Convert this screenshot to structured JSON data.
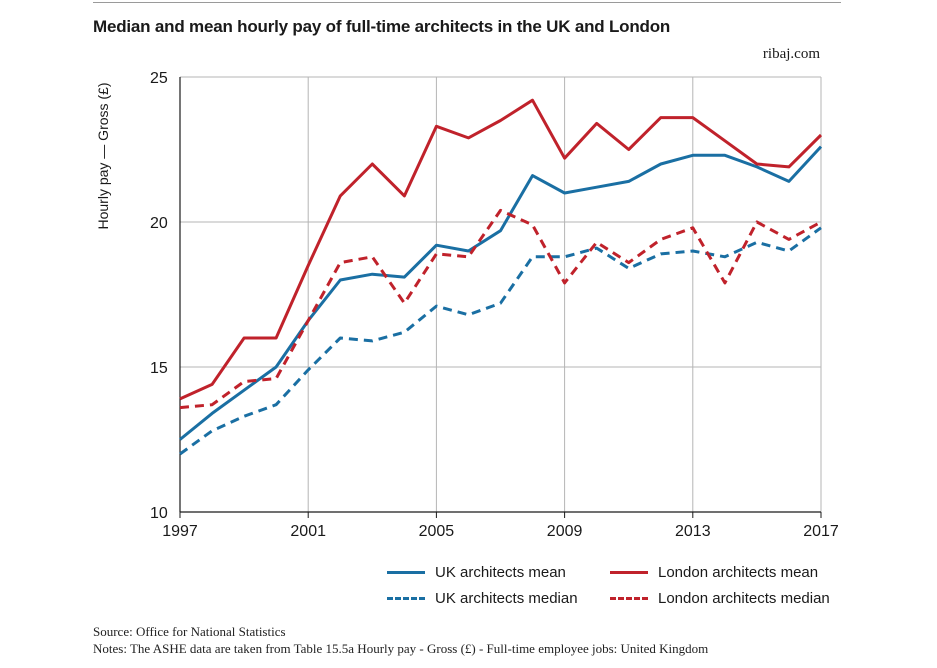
{
  "header": {
    "title": "Median and mean hourly pay of full-time architects in the UK and London",
    "brand": "ribaj.com"
  },
  "chart_data": {
    "type": "line",
    "title": "Median and mean hourly pay of full-time architects in the UK and London",
    "xlabel": "",
    "ylabel": "Hourly pay — Gross (£)",
    "x": [
      1997,
      1998,
      1999,
      2000,
      2001,
      2002,
      2003,
      2004,
      2005,
      2006,
      2007,
      2008,
      2009,
      2010,
      2011,
      2012,
      2013,
      2014,
      2015,
      2016,
      2017
    ],
    "xlim": [
      1997,
      2017
    ],
    "ylim": [
      10,
      25
    ],
    "xticks": [
      "1997",
      "2001",
      "2005",
      "2009",
      "2013",
      "2017"
    ],
    "yticks": [
      "10",
      "15",
      "20",
      "25"
    ],
    "grid": true,
    "series": [
      {
        "name": "UK architects mean",
        "color": "#1a6fa3",
        "dash": "solid",
        "values": [
          12.5,
          13.4,
          14.2,
          15.0,
          16.6,
          18.0,
          18.2,
          18.1,
          19.2,
          19.0,
          19.7,
          21.6,
          21.0,
          21.2,
          21.4,
          22.0,
          22.3,
          22.3,
          21.9,
          21.4,
          22.6
        ]
      },
      {
        "name": "London architects mean",
        "color": "#c0222b",
        "dash": "solid",
        "values": [
          13.9,
          14.4,
          16.0,
          16.0,
          18.5,
          20.9,
          22.0,
          20.9,
          23.3,
          22.9,
          23.5,
          24.2,
          22.2,
          23.4,
          22.5,
          23.6,
          23.6,
          22.8,
          22.0,
          21.9,
          23.0
        ]
      },
      {
        "name": "UK architects median",
        "color": "#1a6fa3",
        "dash": "dashed",
        "values": [
          12.0,
          12.8,
          13.3,
          13.7,
          14.9,
          16.0,
          15.9,
          16.2,
          17.1,
          16.8,
          17.2,
          18.8,
          18.8,
          19.1,
          18.4,
          18.9,
          19.0,
          18.8,
          19.3,
          19.0,
          19.8
        ]
      },
      {
        "name": "London architects median",
        "color": "#c0222b",
        "dash": "dashed",
        "values": [
          13.6,
          13.7,
          14.5,
          14.6,
          16.6,
          18.6,
          18.8,
          17.2,
          18.9,
          18.8,
          20.4,
          19.9,
          17.9,
          19.3,
          18.6,
          19.4,
          19.8,
          17.9,
          20.0,
          19.4,
          20.0
        ]
      }
    ]
  },
  "legend": {
    "items": [
      {
        "label": "UK architects mean",
        "color": "#1a6fa3",
        "style": "solid"
      },
      {
        "label": "London architects mean",
        "color": "#c0222b",
        "style": "solid"
      },
      {
        "label": "UK architects median",
        "color": "#1a6fa3",
        "style": "dashed"
      },
      {
        "label": "London architects median",
        "color": "#c0222b",
        "style": "dashed"
      }
    ]
  },
  "footer": {
    "source": "Source: Office for National Statistics",
    "notes": "Notes: The ASHE data are taken from Table 15.5a  Hourly pay - Gross (£) - Full-time employee jobs: United Kingdom"
  }
}
